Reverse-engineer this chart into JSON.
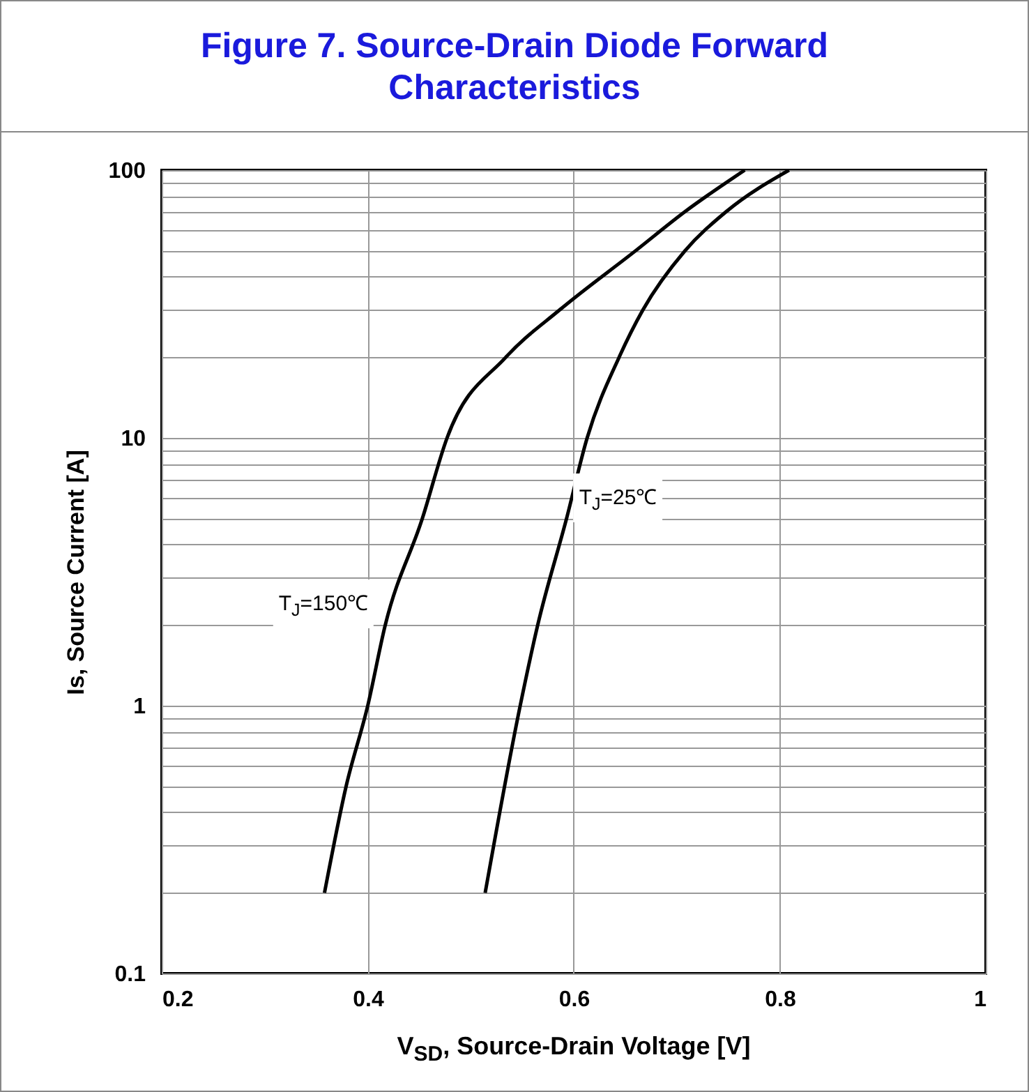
{
  "chart_data": {
    "type": "line",
    "title": "Figure 7. Source-Drain Diode Forward Characteristics",
    "xlabel": "V$_{SD}$, Source-Drain Voltage [V]",
    "ylabel": "Is, Source Current [A]",
    "series": [
      {
        "name": "T$_{J}$=150℃",
        "color": "#000000",
        "x": [
          0.358,
          0.379,
          0.4,
          0.417,
          0.453,
          0.477,
          0.534,
          0.586,
          0.66,
          0.708,
          0.766
        ],
        "values": [
          0.2,
          0.5,
          1,
          2,
          5,
          10,
          20,
          30,
          50,
          70,
          100
        ]
      },
      {
        "name": "T$_{J}$=25℃",
        "color": "#000000",
        "x": [
          0.514,
          0.548,
          0.565,
          0.593,
          0.613,
          0.644,
          0.667,
          0.708,
          0.748,
          0.809
        ],
        "values": [
          0.2,
          1,
          2,
          5,
          10,
          20,
          30,
          50,
          70,
          100
        ]
      }
    ],
    "log": "y",
    "xlim": [
      0.2,
      1
    ],
    "ylim": [
      0.1,
      100
    ],
    "xticks": [
      0.2,
      0.4,
      0.6,
      0.8,
      1
    ],
    "yticks": [
      0.1,
      {
        "value": 0.2,
        "label": null
      },
      {
        "value": 0.3,
        "label": null
      },
      {
        "value": 0.4,
        "label": null
      },
      {
        "value": 0.5,
        "label": null
      },
      {
        "value": 0.6,
        "label": null
      },
      {
        "value": 0.7,
        "label": null
      },
      {
        "value": 0.8,
        "label": null
      },
      {
        "value": 0.9,
        "label": null
      },
      1,
      {
        "value": 2,
        "label": null
      },
      {
        "value": 3,
        "label": null
      },
      {
        "value": 4,
        "label": null
      },
      {
        "value": 5,
        "label": null
      },
      {
        "value": 6,
        "label": null
      },
      {
        "value": 7,
        "label": null
      },
      {
        "value": 8,
        "label": null
      },
      {
        "value": 9,
        "label": null
      },
      10,
      {
        "value": 20,
        "label": null
      },
      {
        "value": 30,
        "label": null
      },
      {
        "value": 40,
        "label": null
      },
      {
        "value": 50,
        "label": null
      },
      {
        "value": 60,
        "label": null
      },
      {
        "value": 70,
        "label": null
      },
      {
        "value": 80,
        "label": null
      },
      {
        "value": 90,
        "label": null
      },
      100
    ],
    "grid": true,
    "marker": "none",
    "line_style": "solid"
  }
}
